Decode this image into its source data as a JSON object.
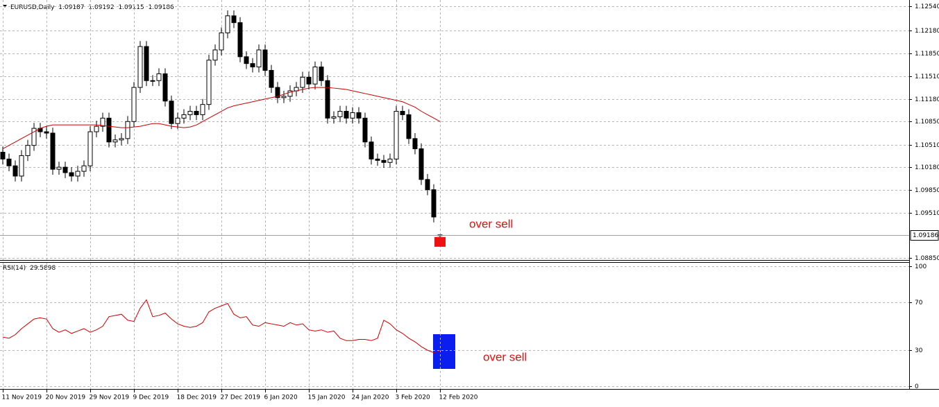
{
  "chart_data": [
    {
      "type": "candlestick",
      "symbol": "EURUSD,Daily",
      "header_values": [
        1.09187,
        1.09192,
        1.09115,
        1.09186
      ],
      "header_labels": [
        "1.09187",
        "1.09192",
        "1.09115",
        "1.09186"
      ],
      "current_price": {
        "value": 1.09186,
        "label": "1.09186"
      },
      "annotation": "over sell",
      "categories": [
        "11 Nov 2019",
        null,
        null,
        null,
        null,
        null,
        null,
        "20 Nov 2019",
        null,
        null,
        null,
        null,
        null,
        null,
        "29 Nov 2019",
        null,
        null,
        null,
        null,
        null,
        null,
        "9 Dec 2019",
        null,
        null,
        null,
        null,
        null,
        null,
        "18 Dec 2019",
        null,
        null,
        null,
        null,
        null,
        null,
        "27 Dec 2019",
        null,
        null,
        null,
        null,
        null,
        null,
        "6 Jan 2020",
        null,
        null,
        null,
        null,
        null,
        null,
        "15 Jan 2020",
        null,
        null,
        null,
        null,
        null,
        null,
        "24 Jan 2020",
        null,
        null,
        null,
        null,
        null,
        null,
        "3 Feb 2020",
        null,
        null,
        null,
        null,
        null,
        null,
        "12 Feb 2020"
      ],
      "open": [
        1.104,
        1.103,
        1.102,
        1.1005,
        1.1035,
        1.105,
        1.1075,
        1.107,
        1.1068,
        1.1015,
        1.1018,
        1.101,
        1.1005,
        1.1012,
        1.102,
        1.107,
        1.1078,
        1.109,
        1.1055,
        1.1058,
        1.106,
        1.1085,
        1.1135,
        1.1195,
        1.1145,
        1.1145,
        1.1155,
        1.1115,
        1.1082,
        1.109,
        1.1095,
        1.11,
        1.1095,
        1.111,
        1.1175,
        1.119,
        1.1215,
        1.124,
        1.123,
        1.118,
        1.117,
        1.1165,
        1.119,
        1.116,
        1.1135,
        1.112,
        1.1122,
        1.113,
        1.1135,
        1.115,
        1.114,
        1.1165,
        1.1145,
        1.109,
        1.1092,
        1.11,
        1.109,
        1.1098,
        1.109,
        1.1055,
        1.103,
        1.1028,
        1.1025,
        1.103,
        1.11,
        1.1095,
        1.106,
        1.1045,
        1.1,
        1.0985,
        1.09187
      ],
      "high": [
        1.1048,
        1.1038,
        1.1028,
        1.1043,
        1.1058,
        1.1083,
        1.1083,
        1.1078,
        1.1076,
        1.1026,
        1.1026,
        1.1018,
        1.102,
        1.1028,
        1.1078,
        1.1086,
        1.1098,
        1.1098,
        1.1066,
        1.1068,
        1.1093,
        1.1143,
        1.1203,
        1.1203,
        1.1153,
        1.1163,
        1.1163,
        1.1123,
        1.1098,
        1.1103,
        1.1108,
        1.1108,
        1.1118,
        1.1183,
        1.1198,
        1.1223,
        1.1248,
        1.1248,
        1.1238,
        1.1188,
        1.1178,
        1.1198,
        1.1198,
        1.1168,
        1.1143,
        1.113,
        1.1138,
        1.1143,
        1.1158,
        1.1158,
        1.1173,
        1.1173,
        1.1153,
        1.11,
        1.1108,
        1.1108,
        1.1106,
        1.1106,
        1.1098,
        1.1063,
        1.1038,
        1.1036,
        1.1038,
        1.1108,
        1.1108,
        1.1103,
        1.1068,
        1.1053,
        1.1008,
        1.0993,
        1.09192
      ],
      "low": [
        1.1022,
        1.1012,
        1.0997,
        1.0997,
        1.1027,
        1.1042,
        1.1062,
        1.106,
        1.1007,
        1.1007,
        1.1002,
        1.0997,
        1.0997,
        1.1004,
        1.1012,
        1.1062,
        1.107,
        1.1047,
        1.1047,
        1.105,
        1.1052,
        1.1077,
        1.1127,
        1.1137,
        1.1137,
        1.1137,
        1.1107,
        1.1074,
        1.1074,
        1.1082,
        1.1087,
        1.1087,
        1.1087,
        1.1102,
        1.1167,
        1.1182,
        1.1207,
        1.1222,
        1.1172,
        1.1162,
        1.1157,
        1.1157,
        1.1152,
        1.1127,
        1.1112,
        1.1112,
        1.1114,
        1.1122,
        1.1127,
        1.1132,
        1.1132,
        1.1137,
        1.1082,
        1.1082,
        1.1084,
        1.1082,
        1.1082,
        1.1082,
        1.1047,
        1.1022,
        1.102,
        1.1017,
        1.1017,
        1.1022,
        1.1087,
        1.1052,
        1.1037,
        1.0992,
        1.0977,
        1.0937,
        1.09115
      ],
      "close": [
        1.103,
        1.102,
        1.1005,
        1.1035,
        1.105,
        1.1075,
        1.107,
        1.1068,
        1.1015,
        1.1018,
        1.101,
        1.1005,
        1.1012,
        1.102,
        1.107,
        1.1078,
        1.109,
        1.1055,
        1.1058,
        1.106,
        1.1085,
        1.1135,
        1.1195,
        1.1145,
        1.1145,
        1.1155,
        1.1115,
        1.1082,
        1.109,
        1.1095,
        1.11,
        1.1095,
        1.111,
        1.1175,
        1.119,
        1.1215,
        1.124,
        1.123,
        1.118,
        1.117,
        1.1165,
        1.119,
        1.116,
        1.1135,
        1.112,
        1.1122,
        1.113,
        1.1135,
        1.115,
        1.114,
        1.1165,
        1.1145,
        1.109,
        1.1092,
        1.11,
        1.109,
        1.1098,
        1.109,
        1.1055,
        1.103,
        1.1028,
        1.1025,
        1.103,
        1.11,
        1.1095,
        1.106,
        1.1045,
        1.1,
        1.0985,
        1.0945,
        1.09186
      ],
      "up_color": "#ffffff",
      "down_color": "#000000",
      "ma": {
        "color": "#cc0000",
        "values": [
          1.1045,
          1.105,
          1.1055,
          1.106,
          1.1065,
          1.107,
          1.1075,
          1.1078,
          1.108,
          1.108,
          1.108,
          1.108,
          1.108,
          1.108,
          1.108,
          1.108,
          1.1079,
          1.1078,
          1.1077,
          1.1076,
          1.1076,
          1.1077,
          1.1078,
          1.108,
          1.1082,
          1.1082,
          1.108,
          1.1078,
          1.1077,
          1.1076,
          1.1077,
          1.108,
          1.1085,
          1.109,
          1.1095,
          1.11,
          1.1105,
          1.1108,
          1.111,
          1.1112,
          1.1114,
          1.1116,
          1.1118,
          1.112,
          1.1122,
          1.1125,
          1.1128,
          1.113,
          1.1132,
          1.1134,
          1.1135,
          1.1135,
          1.1135,
          1.1134,
          1.1133,
          1.1132,
          1.113,
          1.1128,
          1.1126,
          1.1124,
          1.1122,
          1.112,
          1.1118,
          1.1116,
          1.1114,
          1.111,
          1.1106,
          1.11,
          1.1095,
          1.109,
          1.1085
        ]
      },
      "ylim": [
        1.08819,
        1.12632
      ],
      "yticks": [
        {
          "value": 1.1254,
          "label": "1.12540"
        },
        {
          "value": 1.1218,
          "label": "1.12180"
        },
        {
          "value": 1.1185,
          "label": "1.11850"
        },
        {
          "value": 1.1151,
          "label": "1.11510"
        },
        {
          "value": 1.1118,
          "label": "1.11180"
        },
        {
          "value": 1.1085,
          "label": "1.10850"
        },
        {
          "value": 1.1051,
          "label": "1.10510"
        },
        {
          "value": 1.1018,
          "label": "1.10180"
        },
        {
          "value": 1.0985,
          "label": "1.09850"
        },
        {
          "value": 1.0951,
          "label": "1.09510"
        },
        {
          "value": 1.0885,
          "label": "1.08850"
        }
      ],
      "grid": true
    },
    {
      "type": "line",
      "title": "RSI(14)",
      "last_value": 29.5898,
      "annotation": "over sell",
      "color": "#cc0000",
      "values": [
        41,
        40,
        43,
        48,
        52,
        56,
        57,
        56,
        48,
        45,
        47,
        44,
        46,
        48,
        45,
        47,
        50,
        58,
        59,
        60,
        55,
        54,
        65,
        72,
        58,
        59,
        61,
        56,
        52,
        50,
        49,
        50,
        53,
        62,
        65,
        67,
        69,
        60,
        57,
        58,
        51,
        50,
        53,
        52,
        51,
        50,
        53,
        51,
        52,
        47,
        46,
        47,
        45,
        46,
        40,
        38,
        38,
        39,
        39,
        38,
        40,
        55,
        52,
        47,
        44,
        40,
        37,
        33,
        30,
        28,
        29.5898
      ],
      "ylim": [
        -2.3,
        102.9
      ],
      "yticks": [
        100,
        70,
        30,
        0
      ],
      "grid": true
    }
  ]
}
